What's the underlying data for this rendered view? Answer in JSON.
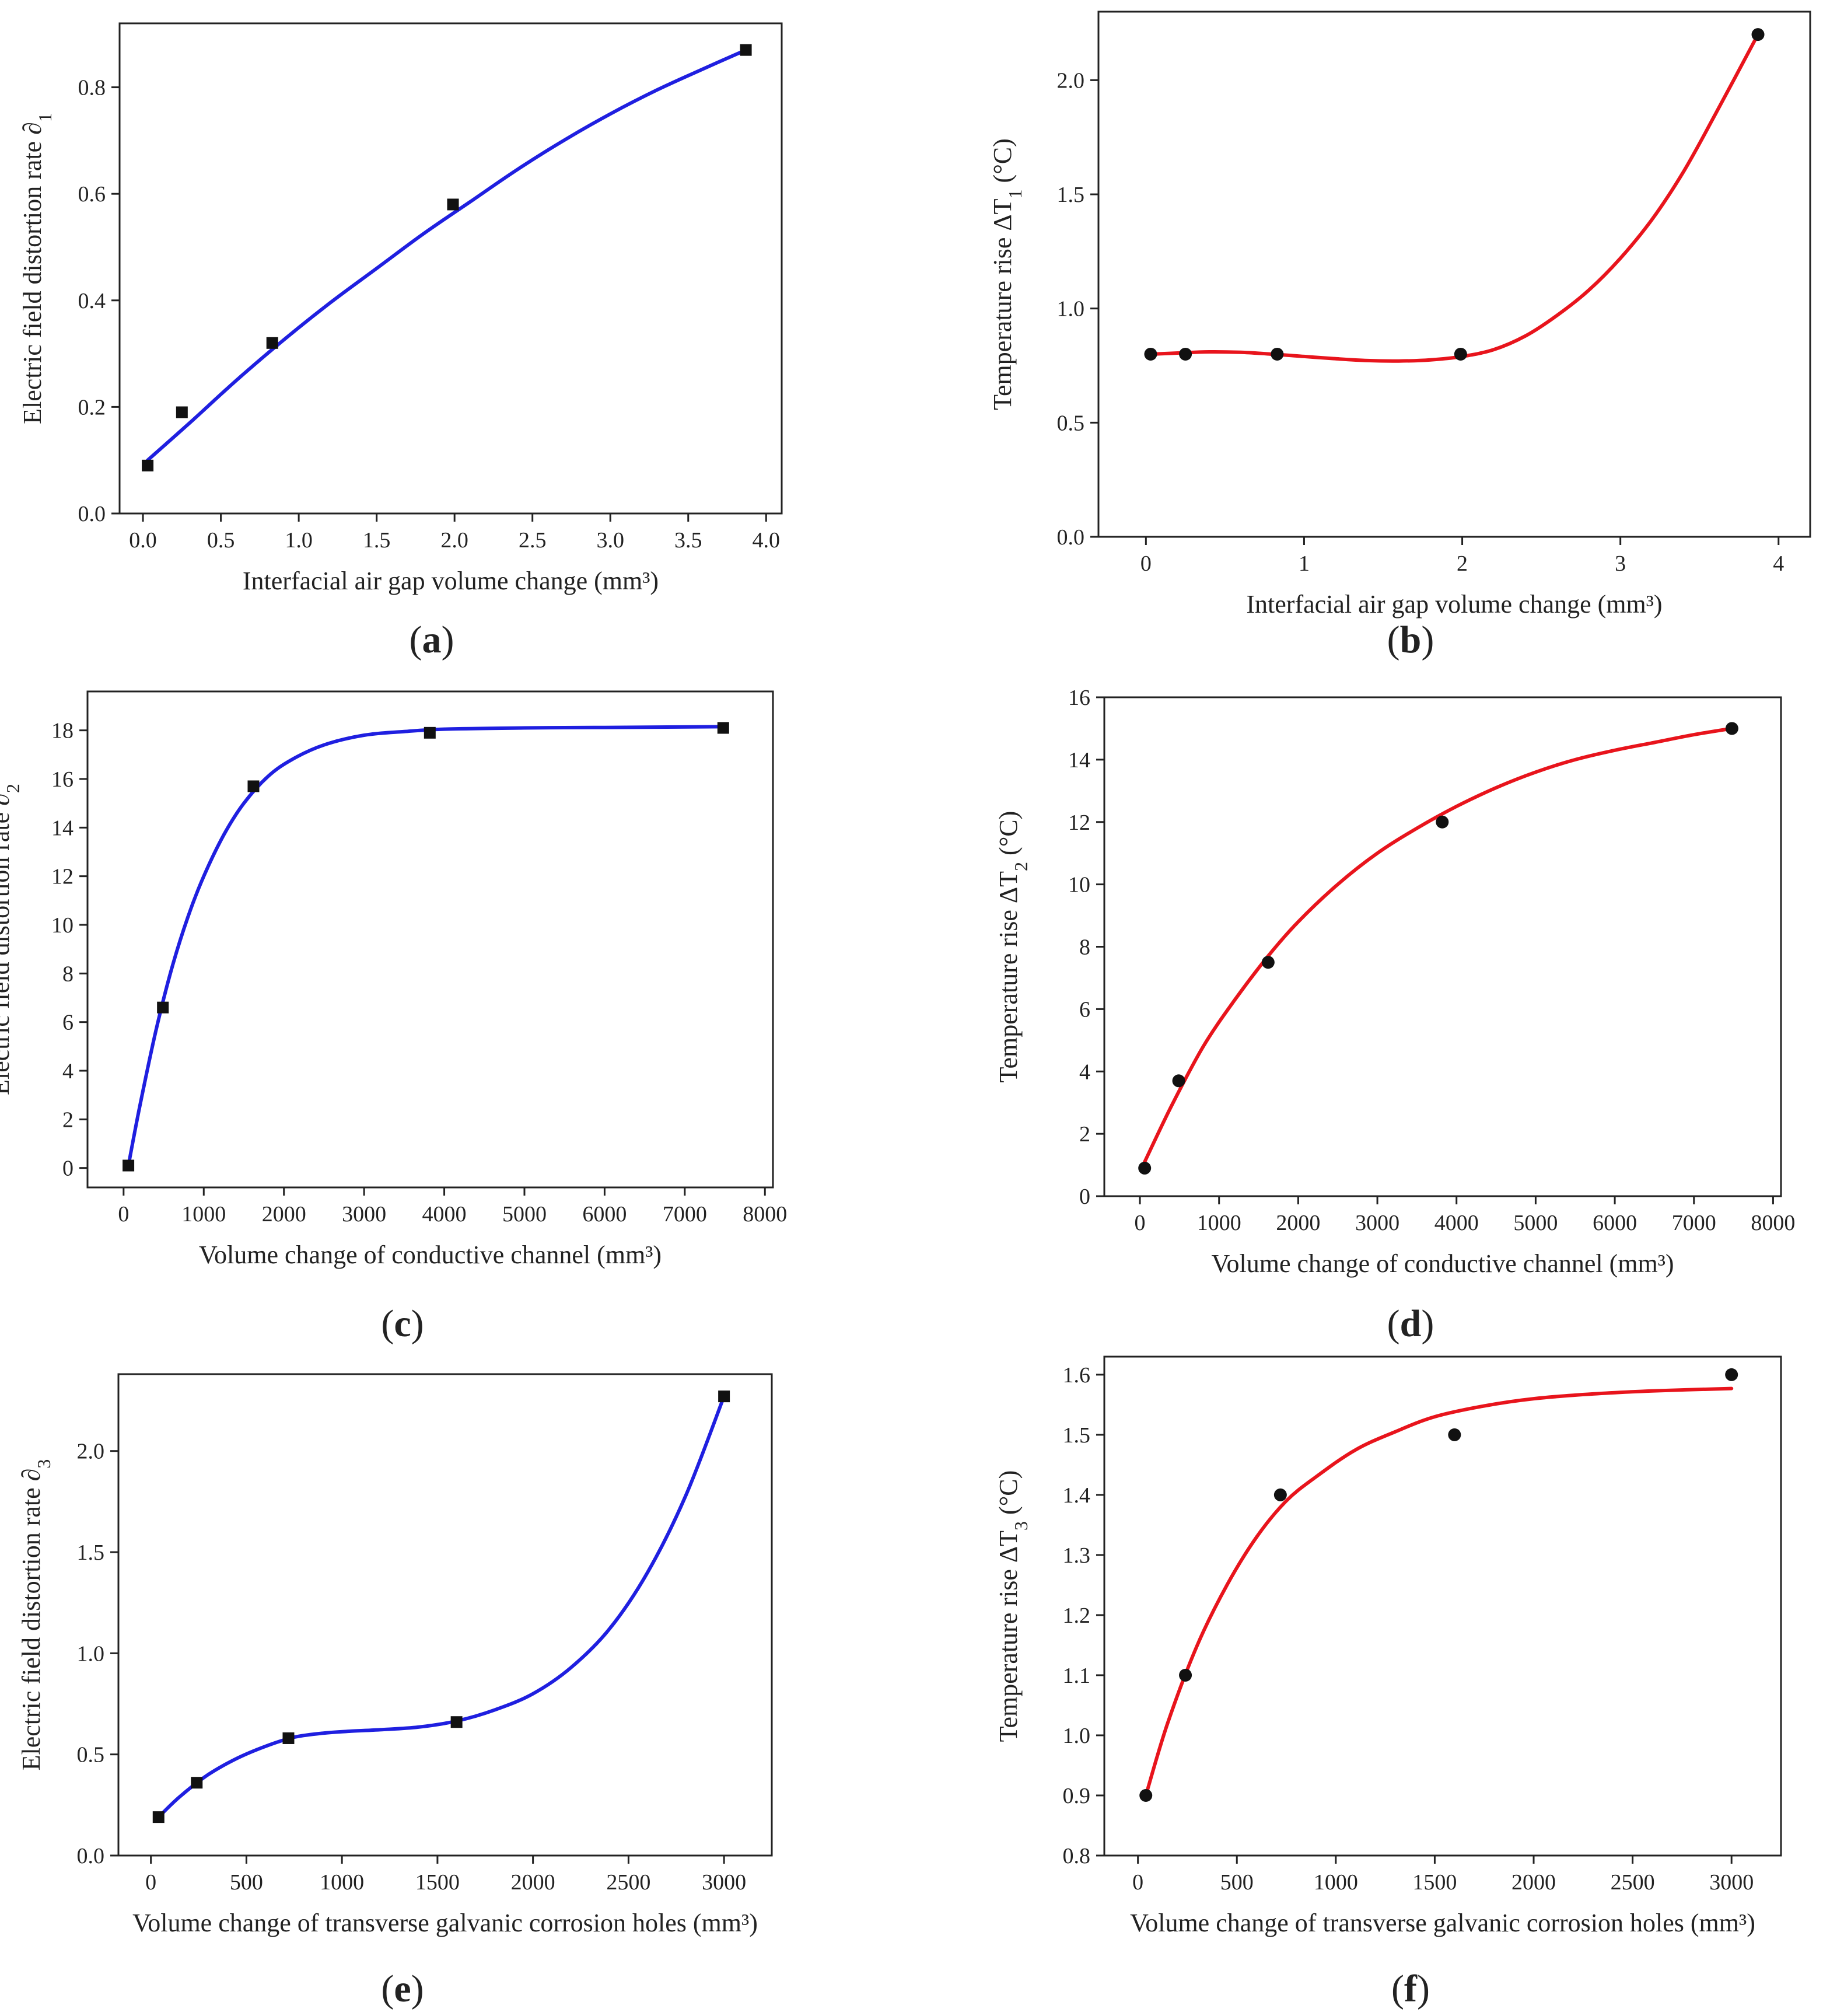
{
  "chart_data": [
    {
      "id": "a",
      "type": "scatter",
      "panel_label": "a",
      "xlabel": "Interfacial air gap volume change (mm³)",
      "ylabel_text": "Electric field distortion rate ∂",
      "ylabel_sub": "1",
      "ylabel_suffix": "",
      "xlim": [
        -0.15,
        4.1
      ],
      "ylim": [
        0,
        0.92
      ],
      "xticks": [
        0,
        0.5,
        1,
        1.5,
        2,
        2.5,
        3,
        3.5,
        4
      ],
      "xtick_labels": [
        "0.0",
        "0.5",
        "1.0",
        "1.5",
        "2.0",
        "2.5",
        "3.0",
        "3.5",
        "4.0"
      ],
      "yticks": [
        0,
        0.2,
        0.4,
        0.6,
        0.8
      ],
      "ytick_labels": [
        "0.0",
        "0.2",
        "0.4",
        "0.6",
        "0.8"
      ],
      "series": [
        {
          "name": "data",
          "marker": "square",
          "x": [
            0.03,
            0.25,
            0.83,
            1.99,
            3.87
          ],
          "y": [
            0.09,
            0.19,
            0.32,
            0.58,
            0.87
          ]
        }
      ],
      "fit": {
        "color": "#1f1fe0",
        "x": [
          0.03,
          0.3,
          0.6,
          0.9,
          1.2,
          1.5,
          1.8,
          2.1,
          2.4,
          2.7,
          3.0,
          3.3,
          3.6,
          3.87
        ],
        "y": [
          0.1,
          0.17,
          0.25,
          0.325,
          0.395,
          0.46,
          0.525,
          0.585,
          0.645,
          0.7,
          0.75,
          0.795,
          0.835,
          0.87
        ]
      }
    },
    {
      "id": "b",
      "type": "scatter",
      "panel_label": "b",
      "xlabel": "Interfacial air gap volume change (mm³)",
      "ylabel_text": "Temperature rise ΔT",
      "ylabel_sub": "1",
      "ylabel_suffix": " (°C)",
      "xlim": [
        -0.3,
        4.2
      ],
      "ylim": [
        0,
        2.3
      ],
      "xticks": [
        0,
        1,
        2,
        3,
        4
      ],
      "xtick_labels": [
        "0",
        "1",
        "2",
        "3",
        "4"
      ],
      "yticks": [
        0,
        0.5,
        1,
        1.5,
        2
      ],
      "ytick_labels": [
        "0.0",
        "0.5",
        "1.0",
        "1.5",
        "2.0"
      ],
      "series": [
        {
          "name": "data",
          "marker": "circle",
          "x": [
            0.03,
            0.25,
            0.83,
            1.99,
            3.87
          ],
          "y": [
            0.8,
            0.8,
            0.8,
            0.8,
            2.2
          ]
        }
      ],
      "fit": {
        "color": "#e8141c",
        "x": [
          0.03,
          0.2,
          0.4,
          0.6,
          0.8,
          1.0,
          1.2,
          1.4,
          1.6,
          1.8,
          2.0,
          2.2,
          2.4,
          2.6,
          2.8,
          3.0,
          3.2,
          3.4,
          3.6,
          3.87
        ],
        "y": [
          0.8,
          0.805,
          0.81,
          0.808,
          0.8,
          0.79,
          0.78,
          0.772,
          0.77,
          0.775,
          0.79,
          0.82,
          0.88,
          0.97,
          1.08,
          1.22,
          1.39,
          1.6,
          1.85,
          2.2
        ]
      }
    },
    {
      "id": "c",
      "type": "scatter",
      "panel_label": "c",
      "xlabel": "Volume change of conductive channel (mm³)",
      "ylabel_text": "Electric field distortion rate ∂",
      "ylabel_sub": "2",
      "ylabel_suffix": "",
      "xlim": [
        -450,
        8100
      ],
      "ylim": [
        -0.8,
        19.6
      ],
      "xticks": [
        0,
        1000,
        2000,
        3000,
        4000,
        5000,
        6000,
        7000,
        8000
      ],
      "xtick_labels": [
        "0",
        "1000",
        "2000",
        "3000",
        "4000",
        "5000",
        "6000",
        "7000",
        "8000"
      ],
      "yticks": [
        0,
        2,
        4,
        6,
        8,
        10,
        12,
        14,
        16,
        18
      ],
      "ytick_labels": [
        "0",
        "2",
        "4",
        "6",
        "8",
        "10",
        "12",
        "14",
        "16",
        "18"
      ],
      "series": [
        {
          "name": "data",
          "marker": "square",
          "x": [
            60,
            490,
            1620,
            3820,
            7480
          ],
          "y": [
            0.1,
            6.6,
            15.7,
            17.9,
            18.1
          ]
        }
      ],
      "fit": {
        "color": "#1f1fe0",
        "x": [
          60,
          200,
          400,
          600,
          800,
          1000,
          1250,
          1500,
          1800,
          2100,
          2500,
          3000,
          3500,
          4000,
          5000,
          6000,
          7480
        ],
        "y": [
          0.1,
          2.5,
          5.6,
          8.2,
          10.3,
          12.0,
          13.7,
          15.0,
          16.1,
          16.8,
          17.4,
          17.8,
          17.95,
          18.05,
          18.1,
          18.12,
          18.15
        ]
      }
    },
    {
      "id": "d",
      "type": "scatter",
      "panel_label": "d",
      "xlabel": "Volume change of conductive channel (mm³)",
      "ylabel_text": "Temperature rise ΔT",
      "ylabel_sub": "2",
      "ylabel_suffix": " (°C)",
      "xlim": [
        -450,
        8100
      ],
      "ylim": [
        0,
        16
      ],
      "xticks": [
        0,
        1000,
        2000,
        3000,
        4000,
        5000,
        6000,
        7000,
        8000
      ],
      "xtick_labels": [
        "0",
        "1000",
        "2000",
        "3000",
        "4000",
        "5000",
        "6000",
        "7000",
        "8000"
      ],
      "yticks": [
        0,
        2,
        4,
        6,
        8,
        10,
        12,
        14,
        16
      ],
      "ytick_labels": [
        "0",
        "2",
        "4",
        "6",
        "8",
        "10",
        "12",
        "14",
        "16"
      ],
      "series": [
        {
          "name": "data",
          "marker": "circle",
          "x": [
            60,
            490,
            1620,
            3820,
            7480
          ],
          "y": [
            0.9,
            3.7,
            7.5,
            12.0,
            15.0
          ]
        }
      ],
      "fit": {
        "color": "#e8141c",
        "x": [
          60,
          400,
          800,
          1200,
          1620,
          2000,
          2500,
          3000,
          3500,
          4000,
          4500,
          5000,
          5500,
          6000,
          6500,
          7000,
          7480
        ],
        "y": [
          1.1,
          2.9,
          4.8,
          6.3,
          7.7,
          8.8,
          10.0,
          11.0,
          11.8,
          12.5,
          13.1,
          13.6,
          14.0,
          14.3,
          14.55,
          14.8,
          15.0
        ]
      }
    },
    {
      "id": "e",
      "type": "scatter",
      "panel_label": "e",
      "xlabel": "Volume change of transverse galvanic corrosion holes (mm³)",
      "ylabel_text": "Electric field distortion rate ∂",
      "ylabel_sub": "3",
      "ylabel_suffix": "",
      "xlim": [
        -170,
        3250
      ],
      "ylim": [
        0,
        2.38
      ],
      "xticks": [
        0,
        500,
        1000,
        1500,
        2000,
        2500,
        3000
      ],
      "xtick_labels": [
        "0",
        "500",
        "1000",
        "1500",
        "2000",
        "2500",
        "3000"
      ],
      "yticks": [
        0,
        0.5,
        1,
        1.5,
        2
      ],
      "ytick_labels": [
        "0.0",
        "0.5",
        "1.0",
        "1.5",
        "2.0"
      ],
      "series": [
        {
          "name": "data",
          "marker": "square",
          "x": [
            40,
            240,
            720,
            1600,
            3000
          ],
          "y": [
            0.19,
            0.36,
            0.58,
            0.66,
            2.27
          ]
        }
      ],
      "fit": {
        "color": "#1f1fe0",
        "x": [
          40,
          150,
          300,
          450,
          600,
          750,
          900,
          1050,
          1200,
          1400,
          1600,
          1800,
          2000,
          2200,
          2400,
          2600,
          2800,
          3000
        ],
        "y": [
          0.19,
          0.29,
          0.4,
          0.48,
          0.54,
          0.585,
          0.605,
          0.615,
          0.622,
          0.635,
          0.665,
          0.72,
          0.8,
          0.93,
          1.12,
          1.4,
          1.78,
          2.27
        ]
      }
    },
    {
      "id": "f",
      "type": "scatter",
      "panel_label": "f",
      "xlabel": "Volume change of transverse galvanic corrosion holes (mm³)",
      "ylabel_text": "Temperature rise ΔT",
      "ylabel_sub": "3",
      "ylabel_suffix": " (°C)",
      "xlim": [
        -170,
        3250
      ],
      "ylim": [
        0.8,
        1.63
      ],
      "xticks": [
        0,
        500,
        1000,
        1500,
        2000,
        2500,
        3000
      ],
      "xtick_labels": [
        "0",
        "500",
        "1000",
        "1500",
        "2000",
        "2500",
        "3000"
      ],
      "yticks": [
        0.8,
        0.9,
        1.0,
        1.1,
        1.2,
        1.3,
        1.4,
        1.5,
        1.6
      ],
      "ytick_labels": [
        "0.8",
        "0.9",
        "1.0",
        "1.1",
        "1.2",
        "1.3",
        "1.4",
        "1.5",
        "1.6"
      ],
      "series": [
        {
          "name": "data",
          "marker": "circle",
          "x": [
            40,
            240,
            720,
            1600,
            3000
          ],
          "y": [
            0.9,
            1.1,
            1.4,
            1.5,
            1.6
          ]
        }
      ],
      "fit": {
        "color": "#e8141c",
        "x": [
          40,
          150,
          300,
          450,
          600,
          750,
          900,
          1100,
          1300,
          1500,
          1750,
          2000,
          2300,
          2600,
          3000
        ],
        "y": [
          0.9,
          1.02,
          1.15,
          1.25,
          1.33,
          1.39,
          1.43,
          1.475,
          1.505,
          1.53,
          1.548,
          1.56,
          1.568,
          1.573,
          1.577
        ]
      }
    }
  ]
}
